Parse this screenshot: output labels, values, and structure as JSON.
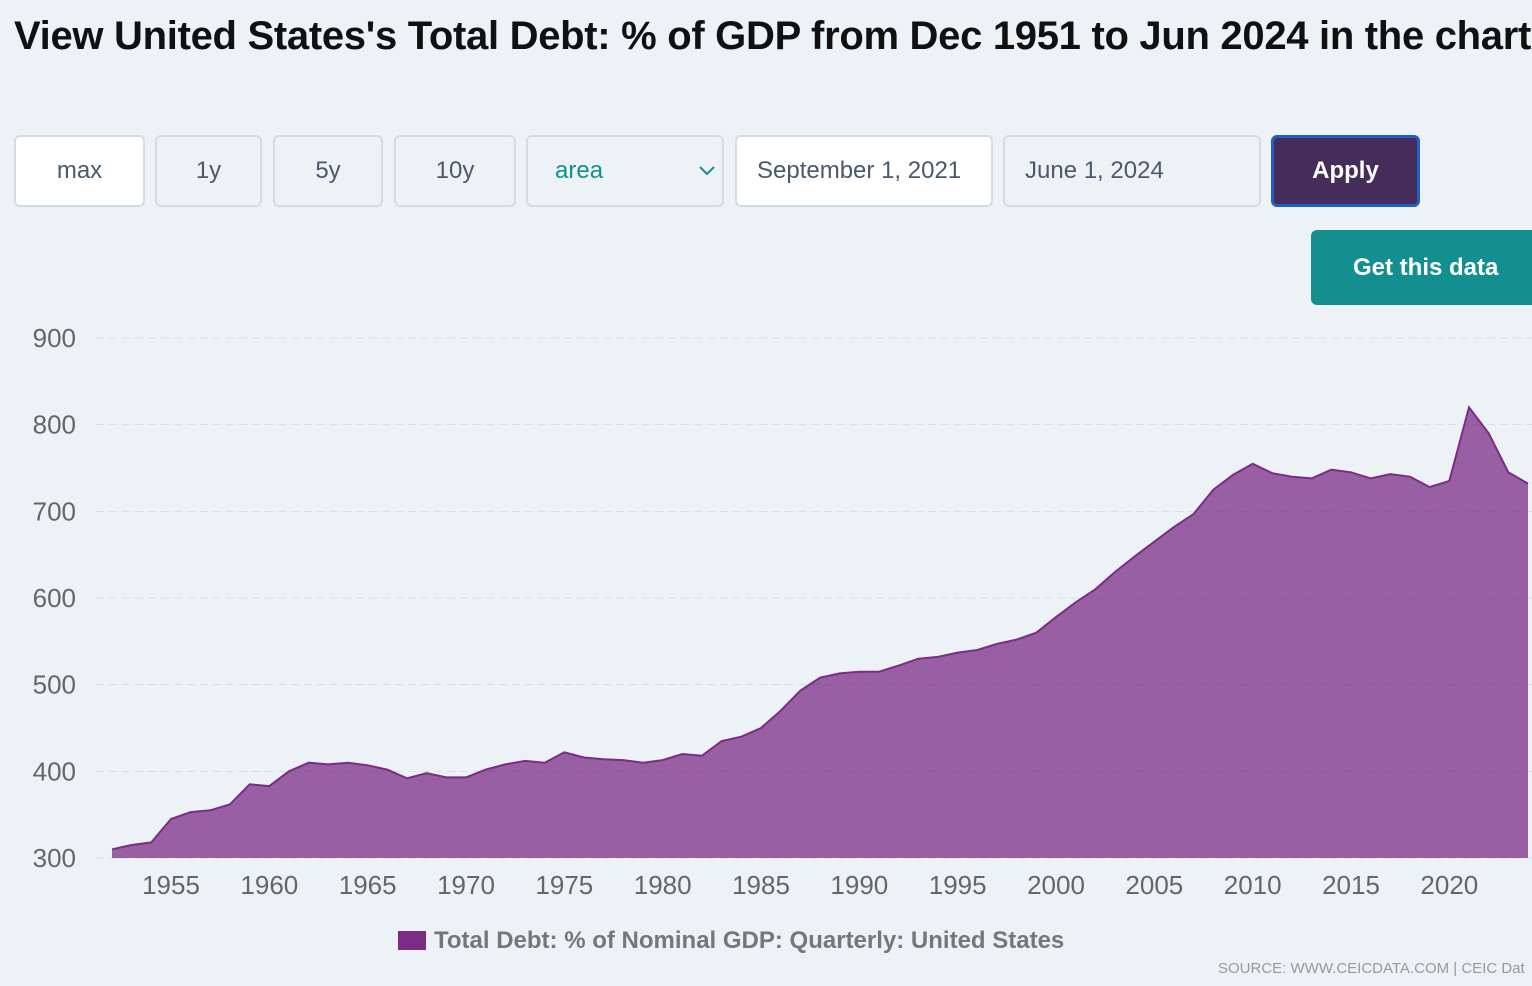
{
  "page": {
    "title": "View United States's Total Debt: % of GDP from Dec 1951 to Jun 2024 in the chart:",
    "range_buttons": [
      "max",
      "1y",
      "5y",
      "10y"
    ],
    "chart_type_select": "area",
    "start_date": "September 1, 2021",
    "end_date": "June 1, 2024",
    "apply": "Apply",
    "get_data": "Get this data",
    "source": "SOURCE: WWW.CEICDATA.COM | CEIC Dat"
  },
  "chart_data": {
    "type": "area",
    "x": [
      1952,
      1953,
      1954,
      1955,
      1956,
      1957,
      1958,
      1959,
      1960,
      1961,
      1962,
      1963,
      1964,
      1965,
      1966,
      1967,
      1968,
      1969,
      1970,
      1971,
      1972,
      1973,
      1974,
      1975,
      1976,
      1977,
      1978,
      1979,
      1980,
      1981,
      1982,
      1983,
      1984,
      1985,
      1986,
      1987,
      1988,
      1989,
      1990,
      1991,
      1992,
      1993,
      1994,
      1995,
      1996,
      1997,
      1998,
      1999,
      2000,
      2001,
      2002,
      2003,
      2004,
      2005,
      2006,
      2007,
      2008,
      2009,
      2010,
      2011,
      2012,
      2013,
      2014,
      2015,
      2016,
      2017,
      2018,
      2019,
      2020,
      2021,
      2022,
      2023,
      2024
    ],
    "series": [
      {
        "name": "Total Debt: % of Nominal GDP: Quarterly: United States",
        "color": "#7b2d85",
        "values": [
          310,
          315,
          318,
          345,
          353,
          355,
          362,
          385,
          383,
          400,
          410,
          408,
          410,
          407,
          402,
          392,
          398,
          393,
          393,
          402,
          408,
          412,
          410,
          422,
          416,
          414,
          413,
          410,
          413,
          420,
          418,
          435,
          440,
          450,
          470,
          493,
          508,
          513,
          515,
          515,
          522,
          530,
          532,
          537,
          540,
          547,
          552,
          560,
          578,
          595,
          610,
          630,
          648,
          665,
          682,
          697,
          725,
          742,
          755,
          744,
          740,
          738,
          748,
          745,
          738,
          743,
          740,
          728,
          735,
          820,
          790,
          745,
          732
        ]
      }
    ],
    "xlim": [
      1952,
      2024
    ],
    "xticks": [
      1955,
      1960,
      1965,
      1970,
      1975,
      1980,
      1985,
      1990,
      1995,
      2000,
      2005,
      2010,
      2015,
      2020
    ],
    "ylim": [
      300,
      900
    ],
    "yticks": [
      300,
      400,
      500,
      600,
      700,
      800,
      900
    ],
    "grid": true
  }
}
